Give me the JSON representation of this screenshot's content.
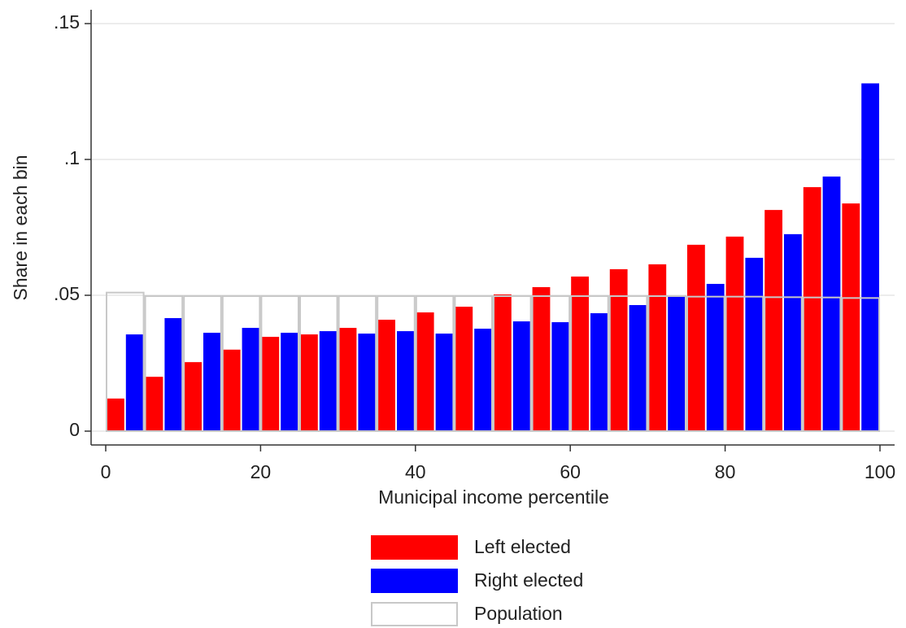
{
  "chart_data": {
    "type": "histogram",
    "x_label": "Municipal income percentile",
    "y_label": "Share in each bin",
    "bins": [
      0,
      5,
      10,
      15,
      20,
      25,
      30,
      35,
      40,
      45,
      50,
      55,
      60,
      65,
      70,
      75,
      80,
      85,
      90,
      95,
      100
    ],
    "series": [
      {
        "name": "Left elected",
        "color": "#ff0000",
        "values": [
          0.012,
          0.02,
          0.0254,
          0.03,
          0.0347,
          0.0356,
          0.038,
          0.041,
          0.0437,
          0.0458,
          0.0503,
          0.053,
          0.0569,
          0.0596,
          0.0614,
          0.0686,
          0.0716,
          0.0814,
          0.0898,
          0.0838
        ]
      },
      {
        "name": "Right elected",
        "color": "#0000ff",
        "values": [
          0.0356,
          0.0416,
          0.0362,
          0.038,
          0.0362,
          0.0368,
          0.0359,
          0.0368,
          0.0359,
          0.0377,
          0.0404,
          0.0401,
          0.0434,
          0.0464,
          0.05,
          0.0542,
          0.0638,
          0.0725,
          0.0937,
          0.128
        ]
      },
      {
        "name": "Population",
        "color": "#c8c8c8",
        "outline": true,
        "values": [
          0.051,
          0.0497,
          0.0497,
          0.0497,
          0.0497,
          0.0497,
          0.0497,
          0.0497,
          0.0497,
          0.0497,
          0.0497,
          0.0497,
          0.0497,
          0.0497,
          0.0497,
          0.0495,
          0.0495,
          0.0493,
          0.0492,
          0.049
        ]
      }
    ],
    "xlim": [
      0,
      100
    ],
    "xticks": [
      0,
      20,
      40,
      60,
      80,
      100
    ],
    "ylim": [
      0,
      0.15
    ],
    "yticks": [
      {
        "value": 0,
        "label": "0"
      },
      {
        "value": 0.05,
        "label": ".05"
      },
      {
        "value": 0.1,
        "label": ".1"
      },
      {
        "value": 0.15,
        "label": ".15"
      }
    ],
    "grid": true,
    "legend": "bottom"
  }
}
